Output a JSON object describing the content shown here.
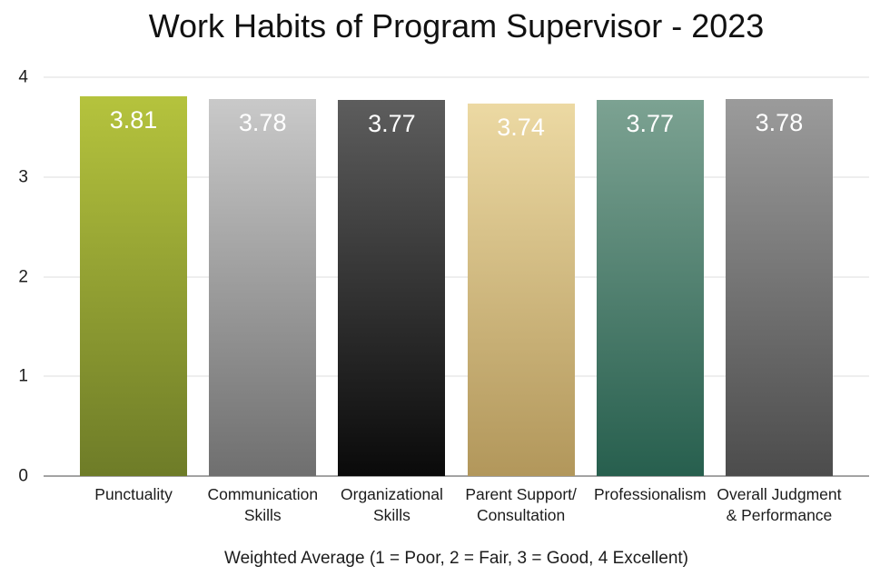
{
  "chart_data": {
    "type": "bar",
    "title": "Work Habits of Program Supervisor - 2023",
    "xlabel": "Weighted Average (1 = Poor, 2 = Fair, 3 = Good, 4 Excellent)",
    "ylabel": "",
    "ylim": [
      0,
      4
    ],
    "yticks": [
      0,
      1,
      2,
      3,
      4
    ],
    "grid": true,
    "legend": false,
    "categories": [
      "Punctuality",
      "Communication Skills",
      "Organizational Skills",
      "Parent Support/Consultation",
      "Professionalism",
      "Overall Judgment & Performance"
    ],
    "category_lines": [
      [
        "Punctuality"
      ],
      [
        "Communication",
        "Skills"
      ],
      [
        "Organizational",
        "Skills"
      ],
      [
        "Parent Support/",
        "Consultation"
      ],
      [
        "Professionalism"
      ],
      [
        "Overall Judgment",
        "& Performance"
      ]
    ],
    "values": [
      3.81,
      3.78,
      3.77,
      3.74,
      3.77,
      3.78
    ],
    "value_labels": [
      "3.81",
      "3.78",
      "3.77",
      "3.74",
      "3.77",
      "3.78"
    ],
    "bar_colors": [
      {
        "top": "#b5c33d",
        "bottom": "#6e7c28"
      },
      {
        "top": "#c9c9c9",
        "bottom": "#6f6f6f"
      },
      {
        "top": "#5d5d5d",
        "bottom": "#0a0a0a"
      },
      {
        "top": "#ecd9a3",
        "bottom": "#b2975b"
      },
      {
        "top": "#7ca292",
        "bottom": "#275f4e"
      },
      {
        "top": "#9b9b9b",
        "bottom": "#4c4c4c"
      }
    ],
    "value_label_color": "#ffffff",
    "gridline_color": "#dcdcdc",
    "axis_line_color": "#a3a3a3",
    "text_color": "#1c1c1c"
  }
}
